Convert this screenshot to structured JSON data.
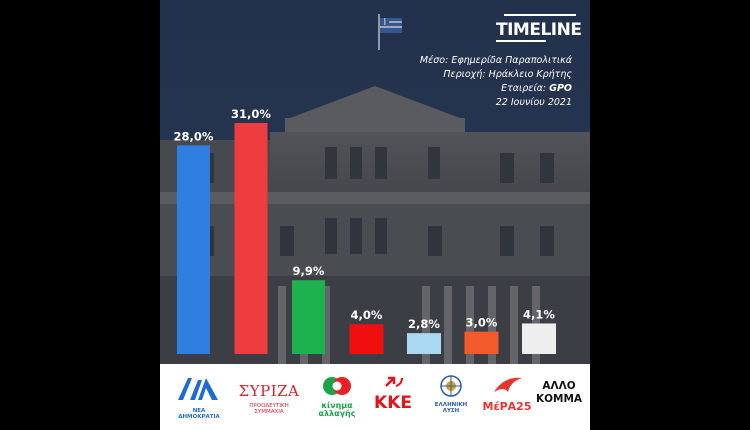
{
  "brand": {
    "name": "TIMELINE"
  },
  "meta": {
    "medium_label": "Μέσο:",
    "medium_value": "Εφημερίδα Παραπολιτικά",
    "region_label": "Περιοχή:",
    "region_value": "Ηράκλειο Κρήτης",
    "company_label": "Εταιρεία:",
    "company_value": "GPO",
    "date": "22 Ιουνίου 2021"
  },
  "chart_data": {
    "type": "bar",
    "categories": [
      "ΝΕΑ ΔΗΜΟΚΡΑΤΙΑ",
      "ΣΥΡΙΖΑ",
      "κίνημα αλλαγής",
      "ΚΚΕ",
      "ΕΛΛΗΝΙΚΗ ΛΥΣΗ",
      "ΜέΡΑ25",
      "ΑΛΛΟ ΚΟΜΜΑ"
    ],
    "values": [
      28.0,
      31.0,
      9.9,
      4.0,
      2.8,
      3.0,
      4.1
    ],
    "value_labels": [
      "28,0%",
      "31,0%",
      "9,9%",
      "4,0%",
      "2,8%",
      "3,0%",
      "4,1%"
    ],
    "colors": [
      "#2f7fe0",
      "#ef3d3f",
      "#1eb24e",
      "#f00f0f",
      "#a9d8f3",
      "#f25a2c",
      "#eeeeee"
    ],
    "ylim": [
      0,
      31.0
    ],
    "grid": false,
    "legend": "none"
  },
  "logos": {
    "nd": {
      "symbol": "ΝΔ",
      "caption": "ΝΕΑ ΔΗΜΟΚΡΑΤΙΑ"
    },
    "syriza": {
      "name": "ΣΥΡΙΖΑ",
      "caption": "ΠΡΟΟΔΕΥΤΙΚΗ ΣΥΜΜΑΧΙΑ"
    },
    "kinal": {
      "line1": "κίνημα",
      "line2": "αλλαγής"
    },
    "kke": {
      "name": "ΚΚΕ"
    },
    "elliniki": {
      "line1": "ΕΛΛΗΝΙΚΗ",
      "line2": "ΛΥΣΗ"
    },
    "mera": {
      "name": "ΜέΡΑ25"
    },
    "allo": {
      "line1": "ΑΛΛΟ",
      "line2": "ΚΟΜΜΑ"
    }
  }
}
